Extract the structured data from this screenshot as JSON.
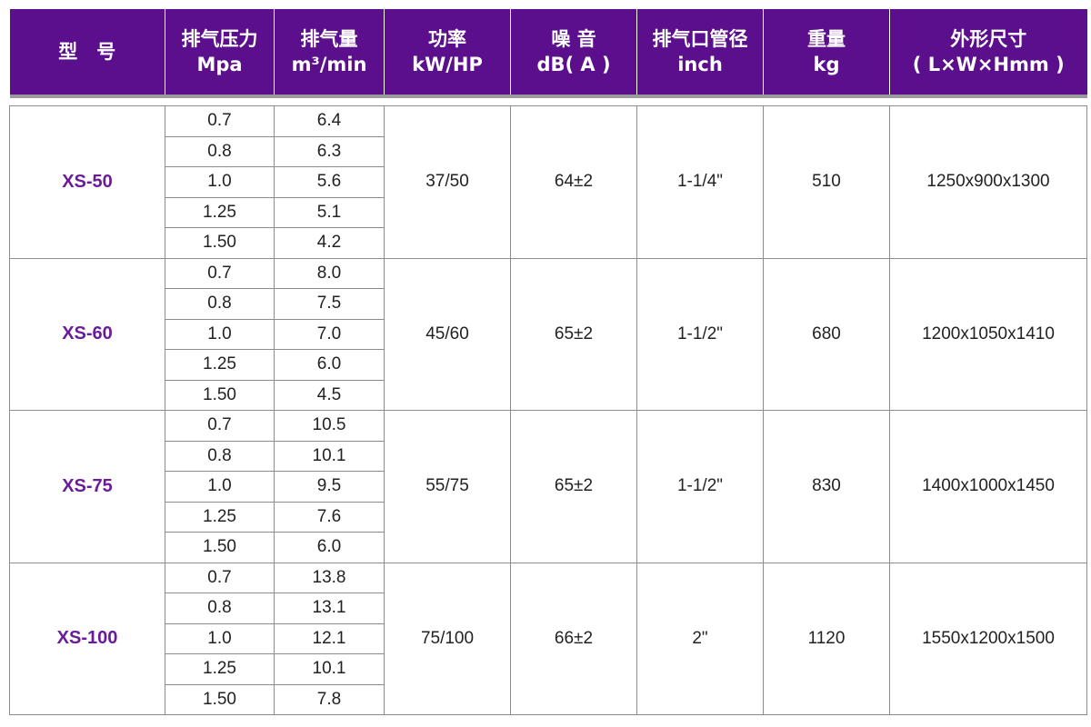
{
  "colors": {
    "header_bg": "#5b0f8d",
    "model_text": "#6a1b9a",
    "border": "#8c8c8c"
  },
  "header": [
    {
      "line1": "型　号",
      "line2": ""
    },
    {
      "line1": "排气压力",
      "line2": "Mpa"
    },
    {
      "line1": "排气量",
      "line2": "m³/min"
    },
    {
      "line1": "功率",
      "line2": "kW/HP"
    },
    {
      "line1": "噪 音",
      "line2": "dB( A )"
    },
    {
      "line1": "排气口管径",
      "line2": "inch"
    },
    {
      "line1": "重量",
      "line2": "kg"
    },
    {
      "line1": "外形尺寸",
      "line2": "( L×W×Hmm )"
    }
  ],
  "models": [
    {
      "name": "XS-50",
      "rows": [
        {
          "pressure": "0.7",
          "flow": "6.4"
        },
        {
          "pressure": "0.8",
          "flow": "6.3"
        },
        {
          "pressure": "1.0",
          "flow": "5.6"
        },
        {
          "pressure": "1.25",
          "flow": "5.1"
        },
        {
          "pressure": "1.50",
          "flow": "4.2"
        }
      ],
      "power": "37/50",
      "noise": "64±2",
      "outlet": "1-1/4\"",
      "weight": "510",
      "dimensions": "1250x900x1300"
    },
    {
      "name": "XS-60",
      "rows": [
        {
          "pressure": "0.7",
          "flow": "8.0"
        },
        {
          "pressure": "0.8",
          "flow": "7.5"
        },
        {
          "pressure": "1.0",
          "flow": "7.0"
        },
        {
          "pressure": "1.25",
          "flow": "6.0"
        },
        {
          "pressure": "1.50",
          "flow": "4.5"
        }
      ],
      "power": "45/60",
      "noise": "65±2",
      "outlet": "1-1/2\"",
      "weight": "680",
      "dimensions": "1200x1050x1410"
    },
    {
      "name": "XS-75",
      "rows": [
        {
          "pressure": "0.7",
          "flow": "10.5"
        },
        {
          "pressure": "0.8",
          "flow": "10.1"
        },
        {
          "pressure": "1.0",
          "flow": "9.5"
        },
        {
          "pressure": "1.25",
          "flow": "7.6"
        },
        {
          "pressure": "1.50",
          "flow": "6.0"
        }
      ],
      "power": "55/75",
      "noise": "65±2",
      "outlet": "1-1/2\"",
      "weight": "830",
      "dimensions": "1400x1000x1450"
    },
    {
      "name": "XS-100",
      "rows": [
        {
          "pressure": "0.7",
          "flow": "13.8"
        },
        {
          "pressure": "0.8",
          "flow": "13.1"
        },
        {
          "pressure": "1.0",
          "flow": "12.1"
        },
        {
          "pressure": "1.25",
          "flow": "10.1"
        },
        {
          "pressure": "1.50",
          "flow": "7.8"
        }
      ],
      "power": "75/100",
      "noise": "66±2",
      "outlet": "2\"",
      "weight": "1120",
      "dimensions": "1550x1200x1500"
    }
  ]
}
